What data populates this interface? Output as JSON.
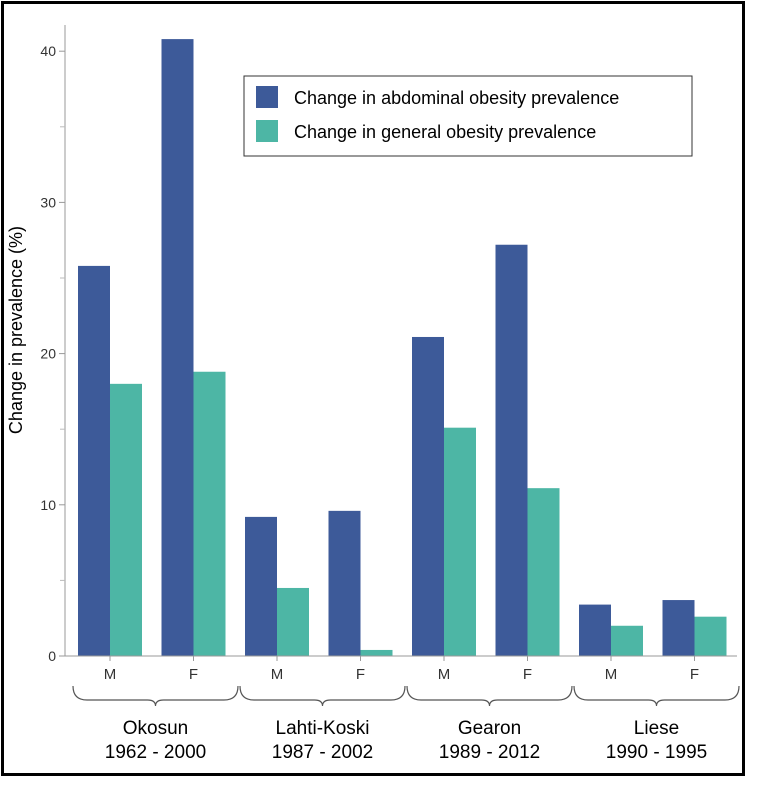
{
  "chart_data": {
    "type": "bar",
    "ylabel": "Change in prevalence (%)",
    "xlabel": "",
    "ylim": [
      0,
      41
    ],
    "yticks": [
      0,
      10,
      20,
      30,
      40
    ],
    "categories": [
      "M",
      "F",
      "M",
      "F",
      "M",
      "F",
      "M",
      "F"
    ],
    "groups": [
      {
        "name": "Okosun",
        "years": "1962 - 2000"
      },
      {
        "name": "Lahti-Koski",
        "years": "1987 - 2002"
      },
      {
        "name": "Gearon",
        "years": "1989 - 2012"
      },
      {
        "name": "Liese",
        "years": "1990 - 1995"
      }
    ],
    "series": [
      {
        "name": "Change in abdominal obesity prevalence",
        "color": "#3d5a99",
        "values": [
          25.8,
          40.8,
          9.2,
          9.6,
          21.1,
          27.2,
          3.4,
          3.7
        ]
      },
      {
        "name": "Change in general obesity prevalence",
        "color": "#4db6a5",
        "values": [
          18.0,
          18.8,
          4.5,
          0.4,
          15.1,
          11.1,
          2.0,
          2.6
        ]
      }
    ],
    "legend_position": "top-right",
    "grid": false
  }
}
